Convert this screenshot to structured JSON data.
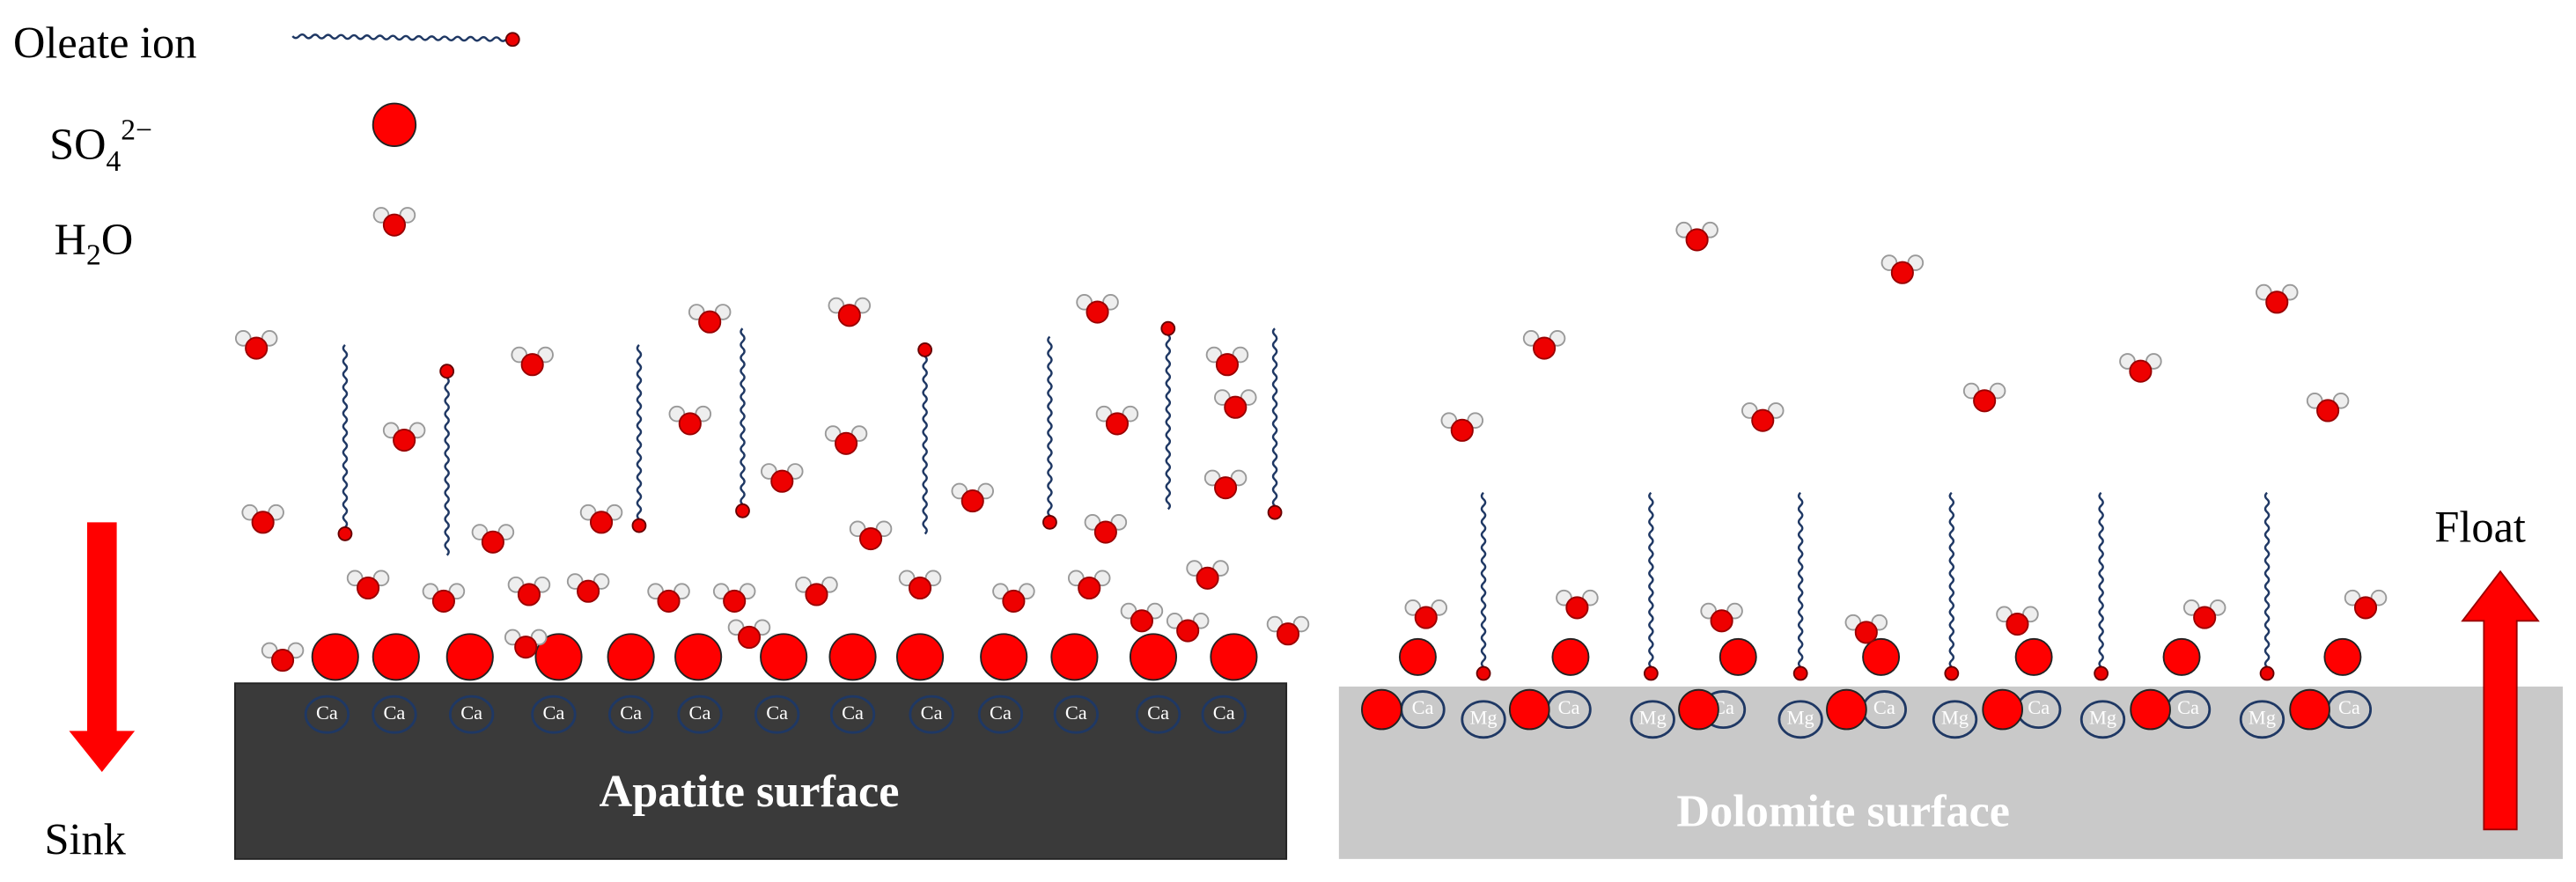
{
  "legend": {
    "oleate": "Oleate ion",
    "sulfate": {
      "base": "SO",
      "sub": "4",
      "sup": "2−"
    },
    "water": {
      "base": "H",
      "sub": "2",
      "end": "O"
    }
  },
  "labels": {
    "sink": "Sink",
    "float": "Float"
  },
  "apatite": {
    "label": "Apatite surface",
    "ions": [
      "Ca",
      "Ca",
      "Ca",
      "Ca",
      "Ca",
      "Ca",
      "Ca",
      "Ca",
      "Ca",
      "Ca",
      "Ca",
      "Ca",
      "Ca"
    ]
  },
  "dolomite": {
    "label": "Dolomite surface",
    "ions": [
      "Ca",
      "Mg",
      "Ca",
      "Mg",
      "Ca",
      "Mg",
      "Ca",
      "Mg",
      "Ca",
      "Mg",
      "Ca",
      "Mg",
      "Ca"
    ]
  }
}
